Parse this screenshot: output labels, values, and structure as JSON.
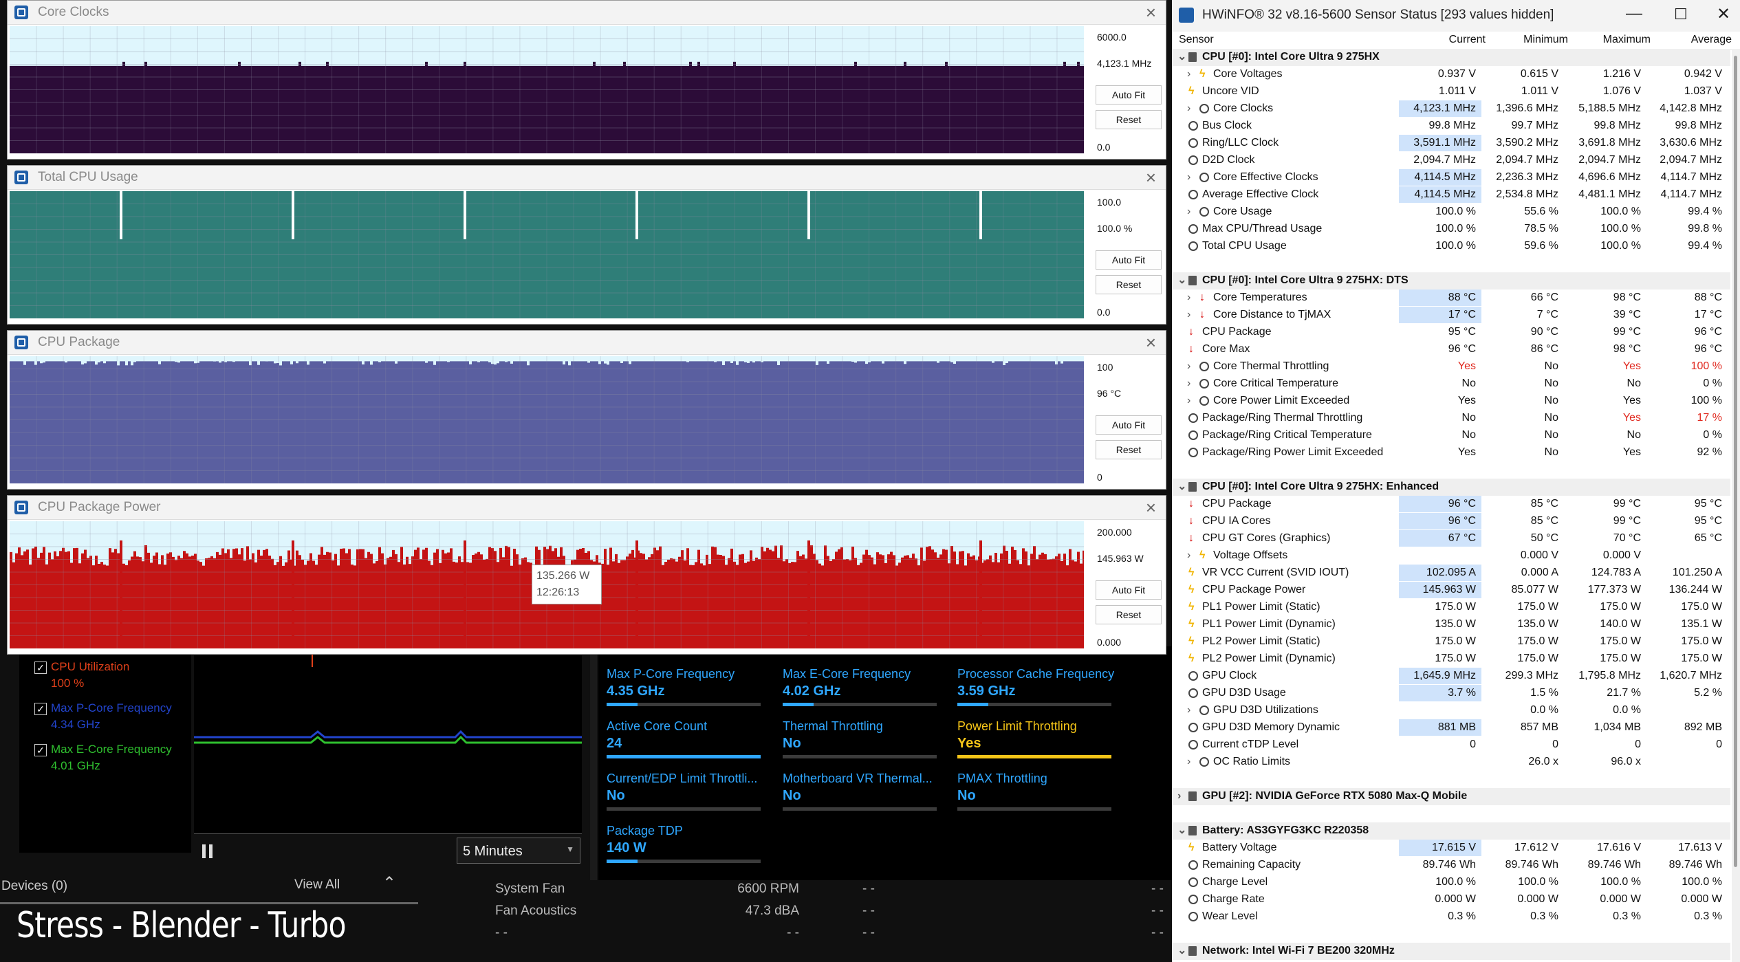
{
  "graphs": [
    {
      "title": "Core Clocks",
      "max_label": "6000.0",
      "current_label": "4,123.1 MHz",
      "min_label": "0.0",
      "auto_fit": "Auto Fit",
      "reset": "Reset",
      "fill_color": "#2c0c38",
      "bg_color": "#dff6fd",
      "level_fraction": 0.687
    },
    {
      "title": "Total CPU Usage",
      "max_label": "100.0",
      "current_label": "100.0 %",
      "min_label": "0.0",
      "auto_fit": "Auto Fit",
      "reset": "Reset",
      "fill_color": "#2f7e78",
      "bg_color": "#dff6fd",
      "level_fraction": 1.0
    },
    {
      "title": "CPU Package",
      "max_label": "100",
      "current_label": "96 °C",
      "min_label": "0",
      "auto_fit": "Auto Fit",
      "reset": "Reset",
      "fill_color": "#5a5fa0",
      "bg_color": "#dff6fd",
      "level_fraction": 0.96
    },
    {
      "title": "CPU Package Power",
      "max_label": "200.000",
      "current_label": "145.963 W",
      "min_label": "0.000",
      "auto_fit": "Auto Fit",
      "reset": "Reset",
      "fill_color": "#c41414",
      "bg_color": "#dff6fd",
      "level_fraction": 0.73,
      "tooltip_value": "135.266 W",
      "tooltip_time": "12:26:13"
    }
  ],
  "sensor_window": {
    "title": "HWiNFO® 32 v8.16-5600 Sensor Status [293 values hidden]",
    "headers": {
      "sensor": "Sensor",
      "current": "Current",
      "minimum": "Minimum",
      "maximum": "Maximum",
      "average": "Average"
    },
    "rows": [
      {
        "type": "group",
        "name": "CPU [#0]: Intel Core Ultra 9 275HX"
      },
      {
        "indent": 1,
        "expand": true,
        "icon": "bolt",
        "name": "Core Voltages",
        "cur": "0.937 V",
        "min": "0.615 V",
        "max": "1.216 V",
        "avg": "0.942 V"
      },
      {
        "indent": 0,
        "icon": "bolt",
        "name": "Uncore VID",
        "cur": "1.011 V",
        "min": "1.011 V",
        "max": "1.076 V",
        "avg": "1.037 V"
      },
      {
        "indent": 1,
        "expand": true,
        "icon": "clock",
        "name": "Core Clocks",
        "cur": "4,123.1 MHz",
        "min": "1,396.6 MHz",
        "max": "5,188.5 MHz",
        "avg": "4,142.8 MHz",
        "hl": true
      },
      {
        "indent": 0,
        "icon": "clock",
        "name": "Bus Clock",
        "cur": "99.8 MHz",
        "min": "99.7 MHz",
        "max": "99.8 MHz",
        "avg": "99.8 MHz"
      },
      {
        "indent": 0,
        "icon": "clock",
        "name": "Ring/LLC Clock",
        "cur": "3,591.1 MHz",
        "min": "3,590.2 MHz",
        "max": "3,691.8 MHz",
        "avg": "3,630.6 MHz",
        "hl": true
      },
      {
        "indent": 0,
        "icon": "clock",
        "name": "D2D Clock",
        "cur": "2,094.7 MHz",
        "min": "2,094.7 MHz",
        "max": "2,094.7 MHz",
        "avg": "2,094.7 MHz"
      },
      {
        "indent": 1,
        "expand": true,
        "icon": "clock",
        "name": "Core Effective Clocks",
        "cur": "4,114.5 MHz",
        "min": "2,236.3 MHz",
        "max": "4,696.6 MHz",
        "avg": "4,114.7 MHz",
        "hl": true
      },
      {
        "indent": 0,
        "icon": "clock",
        "name": "Average Effective Clock",
        "cur": "4,114.5 MHz",
        "min": "2,534.8 MHz",
        "max": "4,481.1 MHz",
        "avg": "4,114.7 MHz",
        "hl": true
      },
      {
        "indent": 1,
        "expand": true,
        "icon": "clock",
        "name": "Core Usage",
        "cur": "100.0 %",
        "min": "55.6 %",
        "max": "100.0 %",
        "avg": "99.4 %"
      },
      {
        "indent": 0,
        "icon": "clock",
        "name": "Max CPU/Thread Usage",
        "cur": "100.0 %",
        "min": "78.5 %",
        "max": "100.0 %",
        "avg": "99.8 %"
      },
      {
        "indent": 0,
        "icon": "clock",
        "name": "Total CPU Usage",
        "cur": "100.0 %",
        "min": "59.6 %",
        "max": "100.0 %",
        "avg": "99.4 %"
      },
      {
        "type": "spacer"
      },
      {
        "type": "group",
        "name": "CPU [#0]: Intel Core Ultra 9 275HX: DTS"
      },
      {
        "indent": 1,
        "expand": true,
        "icon": "therm",
        "name": "Core Temperatures",
        "cur": "88 °C",
        "min": "66 °C",
        "max": "98 °C",
        "avg": "88 °C",
        "hl": true
      },
      {
        "indent": 1,
        "expand": true,
        "icon": "therm",
        "name": "Core Distance to TjMAX",
        "cur": "17 °C",
        "min": "7 °C",
        "max": "39 °C",
        "avg": "17 °C",
        "hl": true
      },
      {
        "indent": 0,
        "icon": "therm",
        "name": "CPU Package",
        "cur": "95 °C",
        "min": "90 °C",
        "max": "99 °C",
        "avg": "96 °C"
      },
      {
        "indent": 0,
        "icon": "therm",
        "name": "Core Max",
        "cur": "96 °C",
        "min": "86 °C",
        "max": "98 °C",
        "avg": "96 °C"
      },
      {
        "indent": 1,
        "expand": true,
        "icon": "clock",
        "name": "Core Thermal Throttling",
        "cur": "Yes",
        "min": "No",
        "max": "Yes",
        "avg": "100 %",
        "red": [
          "cur",
          "max",
          "avg"
        ]
      },
      {
        "indent": 1,
        "expand": true,
        "icon": "clock",
        "name": "Core Critical Temperature",
        "cur": "No",
        "min": "No",
        "max": "No",
        "avg": "0 %"
      },
      {
        "indent": 1,
        "expand": true,
        "icon": "clock",
        "name": "Core Power Limit Exceeded",
        "cur": "Yes",
        "min": "No",
        "max": "Yes",
        "avg": "100 %"
      },
      {
        "indent": 0,
        "icon": "clock",
        "name": "Package/Ring Thermal Throttling",
        "cur": "No",
        "min": "No",
        "max": "Yes",
        "avg": "17 %",
        "red": [
          "max",
          "avg"
        ]
      },
      {
        "indent": 0,
        "icon": "clock",
        "name": "Package/Ring Critical Temperature",
        "cur": "No",
        "min": "No",
        "max": "No",
        "avg": "0 %"
      },
      {
        "indent": 0,
        "icon": "clock",
        "name": "Package/Ring Power Limit Exceeded",
        "cur": "Yes",
        "min": "No",
        "max": "Yes",
        "avg": "92 %"
      },
      {
        "type": "spacer"
      },
      {
        "type": "group",
        "name": "CPU [#0]: Intel Core Ultra 9 275HX: Enhanced"
      },
      {
        "indent": 0,
        "icon": "therm",
        "name": "CPU Package",
        "cur": "96 °C",
        "min": "85 °C",
        "max": "99 °C",
        "avg": "95 °C",
        "hl": true
      },
      {
        "indent": 0,
        "icon": "therm",
        "name": "CPU IA Cores",
        "cur": "96 °C",
        "min": "85 °C",
        "max": "99 °C",
        "avg": "95 °C",
        "hl": true
      },
      {
        "indent": 0,
        "icon": "therm",
        "name": "CPU GT Cores (Graphics)",
        "cur": "67 °C",
        "min": "50 °C",
        "max": "70 °C",
        "avg": "65 °C",
        "hl": true
      },
      {
        "indent": 1,
        "expand": true,
        "icon": "bolt",
        "name": "Voltage Offsets",
        "cur": "",
        "min": "0.000 V",
        "max": "0.000 V",
        "avg": ""
      },
      {
        "indent": 0,
        "icon": "bolt",
        "name": "VR VCC Current (SVID IOUT)",
        "cur": "102.095 A",
        "min": "0.000 A",
        "max": "124.783 A",
        "avg": "101.250 A",
        "hl": true
      },
      {
        "indent": 0,
        "icon": "bolt",
        "name": "CPU Package Power",
        "cur": "145.963 W",
        "min": "85.077 W",
        "max": "177.373 W",
        "avg": "136.244 W",
        "hl": true
      },
      {
        "indent": 0,
        "icon": "bolt",
        "name": "PL1 Power Limit (Static)",
        "cur": "175.0 W",
        "min": "175.0 W",
        "max": "175.0 W",
        "avg": "175.0 W"
      },
      {
        "indent": 0,
        "icon": "bolt",
        "name": "PL1 Power Limit (Dynamic)",
        "cur": "135.0 W",
        "min": "135.0 W",
        "max": "140.0 W",
        "avg": "135.1 W"
      },
      {
        "indent": 0,
        "icon": "bolt",
        "name": "PL2 Power Limit (Static)",
        "cur": "175.0 W",
        "min": "175.0 W",
        "max": "175.0 W",
        "avg": "175.0 W"
      },
      {
        "indent": 0,
        "icon": "bolt",
        "name": "PL2 Power Limit (Dynamic)",
        "cur": "175.0 W",
        "min": "175.0 W",
        "max": "175.0 W",
        "avg": "175.0 W"
      },
      {
        "indent": 0,
        "icon": "clock",
        "name": "GPU Clock",
        "cur": "1,645.9 MHz",
        "min": "299.3 MHz",
        "max": "1,795.8 MHz",
        "avg": "1,620.7 MHz",
        "hl": true
      },
      {
        "indent": 0,
        "icon": "clock",
        "name": "GPU D3D Usage",
        "cur": "3.7 %",
        "min": "1.5 %",
        "max": "21.7 %",
        "avg": "5.2 %",
        "hl": true
      },
      {
        "indent": 1,
        "expand": true,
        "icon": "clock",
        "name": "GPU D3D Utilizations",
        "cur": "",
        "min": "0.0 %",
        "max": "0.0 %",
        "avg": ""
      },
      {
        "indent": 0,
        "icon": "clock",
        "name": "GPU D3D Memory Dynamic",
        "cur": "881 MB",
        "min": "857 MB",
        "max": "1,034 MB",
        "avg": "892 MB",
        "hl": true
      },
      {
        "indent": 0,
        "icon": "clock",
        "name": "Current cTDP Level",
        "cur": "0",
        "min": "0",
        "max": "0",
        "avg": "0"
      },
      {
        "indent": 1,
        "expand": true,
        "icon": "clock",
        "name": "OC Ratio Limits",
        "cur": "",
        "min": "26.0 x",
        "max": "96.0 x",
        "avg": ""
      },
      {
        "type": "spacer"
      },
      {
        "type": "group",
        "collapsed": true,
        "name": "GPU [#2]: NVIDIA  GeForce RTX 5080 Max-Q Mobile"
      },
      {
        "type": "spacer"
      },
      {
        "type": "group",
        "name": "Battery: AS3GYFG3KC R220358"
      },
      {
        "indent": 0,
        "icon": "bolt",
        "name": "Battery Voltage",
        "cur": "17.615 V",
        "min": "17.612 V",
        "max": "17.616 V",
        "avg": "17.613 V",
        "hl": true
      },
      {
        "indent": 0,
        "icon": "clock",
        "name": "Remaining Capacity",
        "cur": "89.746 Wh",
        "min": "89.746 Wh",
        "max": "89.746 Wh",
        "avg": "89.746 Wh"
      },
      {
        "indent": 0,
        "icon": "clock",
        "name": "Charge Level",
        "cur": "100.0 %",
        "min": "100.0 %",
        "max": "100.0 %",
        "avg": "100.0 %"
      },
      {
        "indent": 0,
        "icon": "clock",
        "name": "Charge Rate",
        "cur": "0.000 W",
        "min": "0.000 W",
        "max": "0.000 W",
        "avg": "0.000 W"
      },
      {
        "indent": 0,
        "icon": "clock",
        "name": "Wear Level",
        "cur": "0.3 %",
        "min": "0.3 %",
        "max": "0.3 %",
        "avg": "0.3 %"
      },
      {
        "type": "spacer"
      },
      {
        "type": "group",
        "name": "Network: Intel Wi-Fi 7 BE200 320MHz"
      }
    ]
  },
  "background_app": {
    "legend": [
      {
        "label": "CPU Utilization",
        "value": "100 %",
        "color": "#e0401a"
      },
      {
        "label": "Max P-Core Frequency",
        "value": "4.34 GHz",
        "color": "#2244cc"
      },
      {
        "label": "Max E-Core Frequency",
        "value": "4.01 GHz",
        "color": "#2fc02f"
      }
    ],
    "time_range": "5 Minutes",
    "tiles": [
      {
        "label": "Max P-Core Frequency",
        "value": "4.35 GHz",
        "fill": 0.2,
        "color": "#2fa7ff"
      },
      {
        "label": "Max E-Core Frequency",
        "value": "4.02 GHz",
        "fill": 0.2,
        "color": "#2fa7ff"
      },
      {
        "label": "Processor Cache Frequency",
        "value": "3.59 GHz",
        "fill": 0.2,
        "color": "#2fa7ff"
      },
      {
        "label": "Active Core Count",
        "value": "24",
        "fill": 1.0,
        "color": "#2fa7ff"
      },
      {
        "label": "Thermal Throttling",
        "value": "No",
        "fill": 0.0,
        "color": "#2fa7ff"
      },
      {
        "label": "Power Limit Throttling",
        "value": "Yes",
        "fill": 1.0,
        "color": "#f5c518"
      },
      {
        "label": "Current/EDP Limit Throttli...",
        "value": "No",
        "fill": 0.0,
        "color": "#2fa7ff"
      },
      {
        "label": "Motherboard VR Thermal...",
        "value": "No",
        "fill": 0.0,
        "color": "#2fa7ff"
      },
      {
        "label": "PMAX Throttling",
        "value": "No",
        "fill": 0.0,
        "color": "#2fa7ff"
      },
      {
        "label": "Package TDP",
        "value": "140 W",
        "fill": 0.2,
        "color": "#2fa7ff"
      }
    ],
    "devices_label": "Devices (0)",
    "view_all": "View All",
    "fans": [
      {
        "name": "System Fan",
        "value": "6600 RPM",
        "extra": "- -",
        "extra2": "- -"
      },
      {
        "name": "Fan Acoustics",
        "value": "47.3 dBA",
        "extra": "- -",
        "extra2": "- -"
      },
      {
        "name": "- -",
        "value": "- -",
        "extra": "- -",
        "extra2": "- -"
      }
    ],
    "caption": "Stress - Blender - Turbo"
  }
}
